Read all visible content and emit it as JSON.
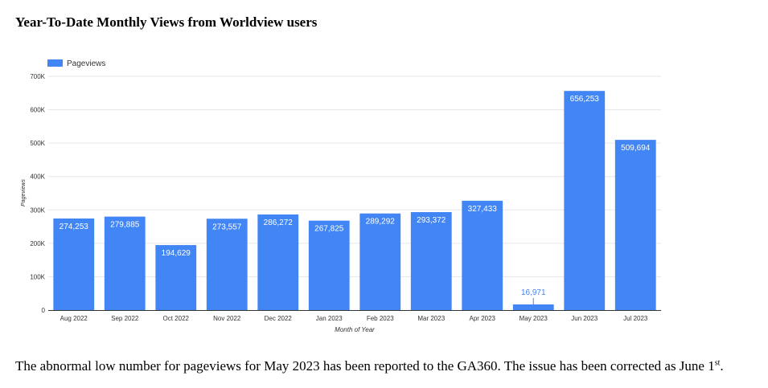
{
  "title": "Year-To-Date Monthly Views from Worldview users",
  "caption": {
    "text": "The abnormal low number for pageviews for May 2023 has been reported to the GA360. The issue has been corrected as June 1",
    "superscript": "st",
    "end": "."
  },
  "colors": {
    "bar": "#4285f4",
    "grid": "#e6e6e6",
    "axis": "#333333",
    "label_inside": "#ffffff",
    "label_outside": "#4285f4"
  },
  "chart_data": {
    "type": "bar",
    "categories": [
      "Aug 2022",
      "Sep 2022",
      "Oct 2022",
      "Nov 2022",
      "Dec 2022",
      "Jan 2023",
      "Feb 2023",
      "Mar 2023",
      "Apr 2023",
      "May 2023",
      "Jun 2023",
      "Jul 2023"
    ],
    "series": [
      {
        "name": "Pageviews",
        "values": [
          274253,
          279885,
          194629,
          273557,
          286272,
          267825,
          289292,
          293372,
          327433,
          16971,
          656253,
          509694
        ]
      }
    ],
    "value_labels": [
      "274,253",
      "279,885",
      "194,629",
      "273,557",
      "286,272",
      "267,825",
      "289,292",
      "293,372",
      "327,433",
      "16,971",
      "656,253",
      "509,694"
    ],
    "xlabel": "Month of Year",
    "ylabel": "Pageviews",
    "ylim": [
      0,
      700000
    ],
    "yticks": [
      0,
      100000,
      200000,
      300000,
      400000,
      500000,
      600000,
      700000
    ],
    "ytick_labels": [
      "0",
      "100K",
      "200K",
      "300K",
      "400K",
      "500K",
      "600K",
      "700K"
    ],
    "grid": true,
    "legend": "top-left"
  }
}
